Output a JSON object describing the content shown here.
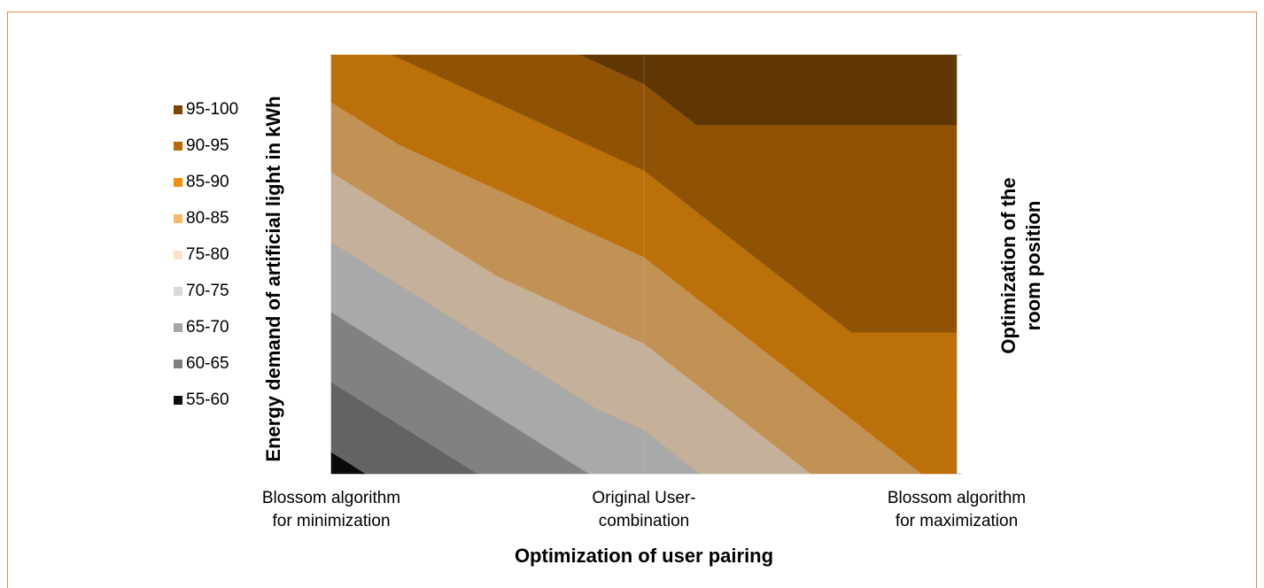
{
  "chart_data": {
    "type": "surface",
    "x_label": "Optimization of user pairing",
    "y_label": "Energy demand of artificial light in kWh",
    "z_label": [
      "Optimization of the",
      "room position"
    ],
    "categories": [
      [
        "Blossom algorithm",
        "for minimization"
      ],
      [
        "Original User-",
        "combination"
      ],
      [
        "Blossom algorithm",
        "for maximization"
      ]
    ],
    "grid_values": [
      [
        88.4,
        96.7,
        96.7
      ],
      [
        58.5,
        72.5,
        86.6
      ]
    ],
    "bands": [
      {
        "label": "95-100",
        "range": [
          95,
          100
        ],
        "color": "#7a4505"
      },
      {
        "label": "90-95",
        "range": [
          90,
          95
        ],
        "color": "#b86a08"
      },
      {
        "label": "85-90",
        "range": [
          85,
          90
        ],
        "color": "#f0900c"
      },
      {
        "label": "80-85",
        "range": [
          80,
          85
        ],
        "color": "#f8bb6c"
      },
      {
        "label": "75-80",
        "range": [
          75,
          80
        ],
        "color": "#fce3c6"
      },
      {
        "label": "70-75",
        "range": [
          70,
          75
        ],
        "color": "#d9d9d9"
      },
      {
        "label": "65-70",
        "range": [
          65,
          70
        ],
        "color": "#a6a6a6"
      },
      {
        "label": "60-65",
        "range": [
          60,
          65
        ],
        "color": "#7f7f7f"
      },
      {
        "label": "55-60",
        "range": [
          55,
          60
        ],
        "color": "#0d0d0d"
      }
    ]
  }
}
